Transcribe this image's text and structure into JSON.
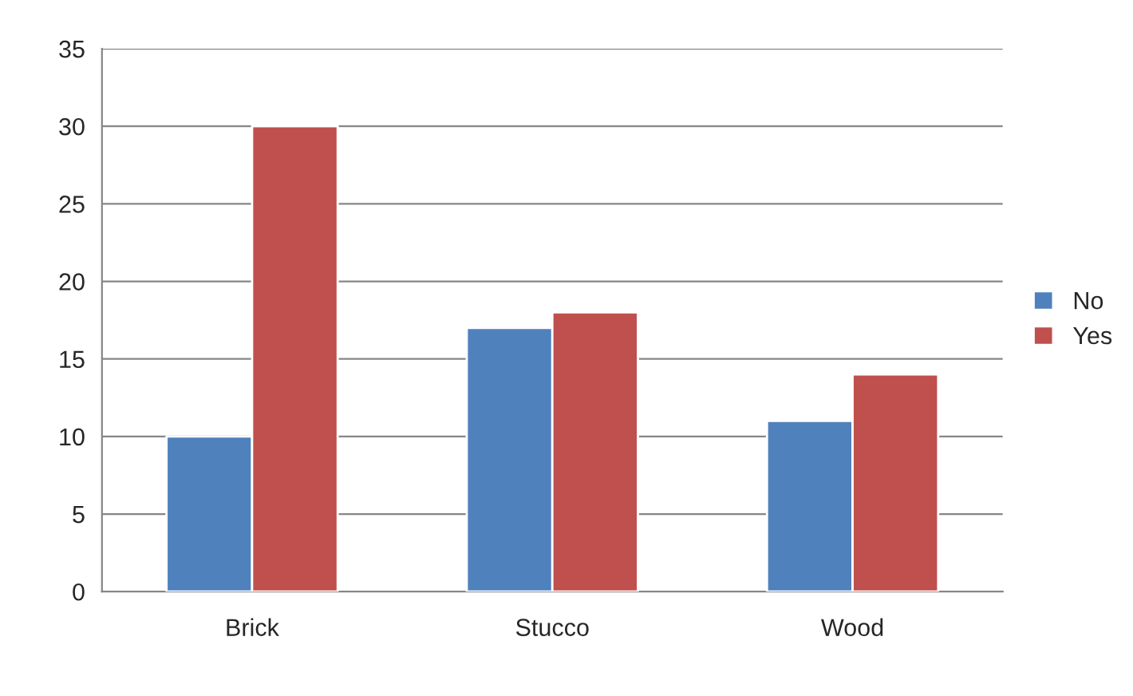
{
  "chart_data": {
    "type": "bar",
    "categories": [
      "Brick",
      "Stucco",
      "Wood"
    ],
    "series": [
      {
        "name": "No",
        "color": "#4f81bd",
        "values": [
          10,
          17,
          11
        ]
      },
      {
        "name": "Yes",
        "color": "#c0504d",
        "values": [
          30,
          18,
          14
        ]
      }
    ],
    "ylim": [
      0,
      35
    ],
    "yticks": [
      0,
      5,
      10,
      15,
      20,
      25,
      30,
      35
    ],
    "grid": "y",
    "legend": "right"
  }
}
